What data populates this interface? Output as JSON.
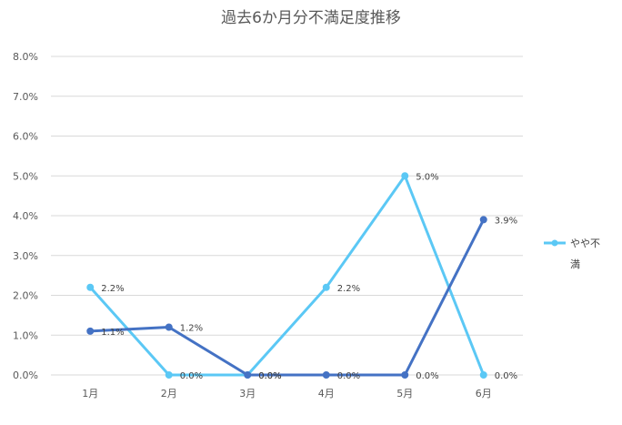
{
  "chart_data": {
    "type": "line",
    "title": "過去6か月分不満足度推移",
    "categories": [
      "1月",
      "2月",
      "3月",
      "4月",
      "5月",
      "6月"
    ],
    "ylim": [
      0,
      8
    ],
    "yticks": [
      "0.0%",
      "1.0%",
      "2.0%",
      "3.0%",
      "4.0%",
      "5.0%",
      "6.0%",
      "7.0%",
      "8.0%"
    ],
    "grid": true,
    "legend_position": "right",
    "series": [
      {
        "name": "やや不満",
        "color": "#5BC8F5",
        "values": [
          2.2,
          0.0,
          0.0,
          2.2,
          5.0,
          0.0
        ],
        "labels": [
          "2.2%",
          "0.0%",
          "0.0%",
          "2.2%",
          "5.0%",
          "0.0%"
        ],
        "in_legend": true
      },
      {
        "color": "#4472C4",
        "values": [
          1.1,
          1.2,
          0.0,
          0.0,
          0.0,
          3.9
        ],
        "labels": [
          "1.1%",
          "1.2%",
          "0.0%",
          "0.0%",
          "0.0%",
          "3.9%"
        ],
        "in_legend": false
      }
    ]
  }
}
